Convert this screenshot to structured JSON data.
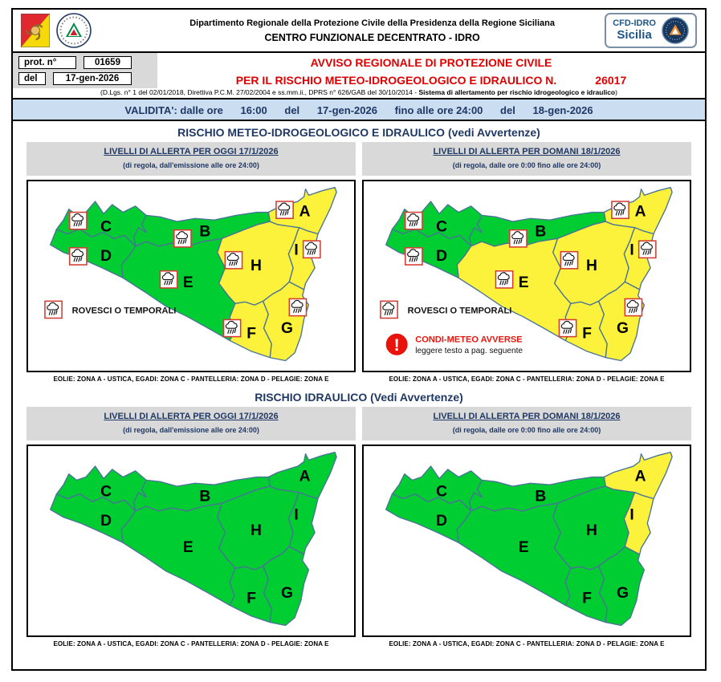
{
  "header": {
    "org_line1": "Dipartimento Regionale della Protezione Civile della Presidenza della Regione Siciliana",
    "org_line2": "CENTRO FUNZIONALE DECENTRATO - IDRO",
    "cfd_line1": "CFD-IDRO",
    "cfd_line2": "Sicilia"
  },
  "protocol": {
    "prot_label": "prot. n°",
    "prot_value": "01659",
    "del_label": "del",
    "del_value": "17-gen-2026"
  },
  "notice": {
    "line1": "AVVISO REGIONALE DI PROTEZIONE CIVILE",
    "line2": "PER IL RISCHIO METEO-IDROGEOLOGICO E IDRAULICO N.",
    "number": "26017",
    "legal_prefix": "(D.Lgs. n° 1 del 02/01/2018, Direttiva P.C.M. 27/02/2004 e ss.mm.ii., DPRS n° 626/GAB del 30/10/2014 - ",
    "legal_bold": "Sistema di allertamento per rischio idrogeologico e idraulico",
    "legal_suffix": ")"
  },
  "validity": {
    "label": "VALIDITA': dalle ore",
    "time_from": "16:00",
    "del1": "del",
    "date_from": "17-gen-2026",
    "until_label": "fino alle ore 24:00",
    "del2": "del",
    "date_to": "18-gen-2026"
  },
  "sections": [
    {
      "title": "RISCHIO METEO-IDROGEOLOGICO E IDRAULICO (vedi Avvertenze)",
      "columns": [
        {
          "header": "LIVELLI DI ALLERTA PER OGGI 17/1/2026",
          "subheader": "(di regola, dall'emissione alle ore 24:00)",
          "footer": "EOLIE: ZONA A - USTICA, EGADI: ZONA C - PANTELLERIA: ZONA D - PELAGIE: ZONA E",
          "map": "meteo-oggi"
        },
        {
          "header": "LIVELLI DI ALLERTA PER DOMANI 18/1/2026",
          "subheader": "(di regola, dalle ore 0:00 fino alle ore 24:00)",
          "footer": "EOLIE: ZONA A - USTICA, EGADI: ZONA C - PANTELLERIA: ZONA D - PELAGIE: ZONA E",
          "map": "meteo-domani"
        }
      ]
    },
    {
      "title": "RISCHIO IDRAULICO (Vedi Avvertenze)",
      "columns": [
        {
          "header": "LIVELLI DI ALLERTA PER OGGI 17/1/2026",
          "subheader": "(di regola, dall'emissione alle ore 24:00)",
          "footer": "EOLIE: ZONA A - USTICA, EGADI: ZONA C - PANTELLERIA: ZONA D - PELAGIE: ZONA E",
          "map": "idraulico-oggi"
        },
        {
          "header": "LIVELLI DI ALLERTA PER DOMANI 18/1/2026",
          "subheader": "(di regola, dalle ore 0:00 fino alle ore 24:00)",
          "footer": "EOLIE: ZONA A - USTICA, EGADI: ZONA C - PANTELLERIA: ZONA D - PELAGIE: ZONA E",
          "map": "idraulico-domani"
        }
      ]
    }
  ],
  "maps": {
    "meteo-oggi": {
      "levels": {
        "A": "yellow",
        "B": "green",
        "C": "green",
        "D": "green",
        "E": "green",
        "F": "yellow",
        "G": "yellow",
        "H": "yellow",
        "I": "yellow"
      },
      "storm_zones": [
        "A",
        "B",
        "C",
        "D",
        "E",
        "F",
        "G",
        "H",
        "I"
      ],
      "show_legend": true,
      "show_warning": false
    },
    "meteo-domani": {
      "levels": {
        "A": "yellow",
        "B": "green",
        "C": "green",
        "D": "green",
        "E": "yellow",
        "F": "yellow",
        "G": "yellow",
        "H": "yellow",
        "I": "yellow"
      },
      "storm_zones": [
        "A",
        "B",
        "C",
        "D",
        "E",
        "F",
        "G",
        "H",
        "I"
      ],
      "show_legend": true,
      "show_warning": true
    },
    "idraulico-oggi": {
      "levels": {
        "A": "green",
        "B": "green",
        "C": "green",
        "D": "green",
        "E": "green",
        "F": "green",
        "G": "green",
        "H": "green",
        "I": "green"
      },
      "storm_zones": [],
      "show_legend": false,
      "show_warning": false
    },
    "idraulico-domani": {
      "levels": {
        "A": "yellow",
        "B": "green",
        "C": "green",
        "D": "green",
        "E": "green",
        "F": "green",
        "G": "green",
        "H": "green",
        "I": "yellow"
      },
      "storm_zones": [],
      "show_legend": false,
      "show_warning": false
    }
  },
  "legend": {
    "storm_label": "ROVESCI O TEMPORALI",
    "warning_title": "CONDI-METEO AVVERSE",
    "warning_subtitle": "leggere testo a pag. seguente"
  },
  "colors": {
    "green": "#00CD32",
    "yellow": "#FCF23C",
    "zone_border": "#4A7396",
    "alert_red": "#E00000",
    "warning_red": "#E8140C",
    "dark_blue": "#1F3864",
    "validity_bg": "#CBDDF1",
    "panel_gray": "#D9D9D9",
    "icon_border_red": "#D43B33"
  }
}
